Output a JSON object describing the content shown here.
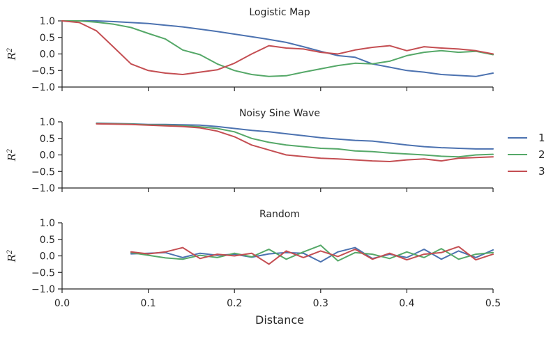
{
  "chart_data": [
    {
      "type": "line",
      "title": "Logistic Map",
      "xlabel": "",
      "ylabel": "R^2",
      "xlim": [
        0.0,
        0.5
      ],
      "ylim": [
        -1.0,
        1.0
      ],
      "yticks": [
        "1.0",
        "0.5",
        "0.0",
        "−0.5",
        "−1.0"
      ],
      "grid": false,
      "series": [
        {
          "name": "1",
          "color": "#4c72b0",
          "x": [
            0.0,
            0.02,
            0.04,
            0.06,
            0.08,
            0.1,
            0.12,
            0.14,
            0.16,
            0.18,
            0.2,
            0.22,
            0.24,
            0.26,
            0.28,
            0.3,
            0.32,
            0.34,
            0.36,
            0.38,
            0.4,
            0.42,
            0.44,
            0.46,
            0.48,
            0.5
          ],
          "y": [
            1.0,
            1.0,
            1.0,
            0.98,
            0.95,
            0.92,
            0.87,
            0.82,
            0.75,
            0.68,
            0.6,
            0.52,
            0.44,
            0.35,
            0.22,
            0.08,
            -0.05,
            -0.1,
            -0.3,
            -0.4,
            -0.5,
            -0.55,
            -0.62,
            -0.65,
            -0.68,
            -0.58
          ]
        },
        {
          "name": "2",
          "color": "#55a868",
          "x": [
            0.0,
            0.02,
            0.04,
            0.06,
            0.08,
            0.1,
            0.12,
            0.14,
            0.16,
            0.18,
            0.2,
            0.22,
            0.24,
            0.26,
            0.28,
            0.3,
            0.32,
            0.34,
            0.36,
            0.38,
            0.4,
            0.42,
            0.44,
            0.46,
            0.48,
            0.5
          ],
          "y": [
            1.0,
            1.0,
            0.96,
            0.9,
            0.8,
            0.62,
            0.45,
            0.12,
            -0.02,
            -0.3,
            -0.5,
            -0.62,
            -0.68,
            -0.66,
            -0.55,
            -0.45,
            -0.35,
            -0.28,
            -0.3,
            -0.22,
            -0.05,
            0.05,
            0.1,
            0.05,
            0.08,
            -0.02
          ]
        },
        {
          "name": "3",
          "color": "#c44e52",
          "x": [
            0.0,
            0.02,
            0.04,
            0.06,
            0.08,
            0.1,
            0.12,
            0.14,
            0.16,
            0.18,
            0.2,
            0.22,
            0.24,
            0.26,
            0.28,
            0.3,
            0.32,
            0.34,
            0.36,
            0.38,
            0.4,
            0.42,
            0.44,
            0.46,
            0.48,
            0.5
          ],
          "y": [
            1.0,
            0.95,
            0.7,
            0.2,
            -0.3,
            -0.5,
            -0.58,
            -0.62,
            -0.55,
            -0.48,
            -0.28,
            0.0,
            0.25,
            0.18,
            0.15,
            0.05,
            0.0,
            0.12,
            0.2,
            0.25,
            0.1,
            0.22,
            0.18,
            0.15,
            0.1,
            0.0
          ]
        }
      ]
    },
    {
      "type": "line",
      "title": "Noisy Sine Wave",
      "xlabel": "",
      "ylabel": "R^2",
      "xlim": [
        0.0,
        0.5
      ],
      "ylim": [
        -1.0,
        1.0
      ],
      "yticks": [
        "1.0",
        "0.5",
        "0.0",
        "−0.5",
        "−1.0"
      ],
      "grid": false,
      "series": [
        {
          "name": "1",
          "color": "#4c72b0",
          "x": [
            0.04,
            0.06,
            0.08,
            0.1,
            0.12,
            0.14,
            0.16,
            0.18,
            0.2,
            0.22,
            0.24,
            0.26,
            0.28,
            0.3,
            0.32,
            0.34,
            0.36,
            0.38,
            0.4,
            0.42,
            0.44,
            0.46,
            0.48,
            0.5
          ],
          "y": [
            0.96,
            0.95,
            0.94,
            0.92,
            0.92,
            0.91,
            0.9,
            0.86,
            0.8,
            0.74,
            0.7,
            0.64,
            0.58,
            0.52,
            0.48,
            0.44,
            0.42,
            0.36,
            0.3,
            0.25,
            0.22,
            0.2,
            0.18,
            0.18
          ]
        },
        {
          "name": "2",
          "color": "#55a868",
          "x": [
            0.04,
            0.06,
            0.08,
            0.1,
            0.12,
            0.14,
            0.16,
            0.18,
            0.2,
            0.22,
            0.24,
            0.26,
            0.28,
            0.3,
            0.32,
            0.34,
            0.36,
            0.38,
            0.4,
            0.42,
            0.44,
            0.46,
            0.48,
            0.5
          ],
          "y": [
            0.95,
            0.94,
            0.93,
            0.91,
            0.9,
            0.88,
            0.85,
            0.8,
            0.7,
            0.5,
            0.38,
            0.3,
            0.25,
            0.2,
            0.18,
            0.12,
            0.1,
            0.06,
            0.03,
            0.0,
            -0.04,
            -0.06,
            0.0,
            0.02
          ]
        },
        {
          "name": "3",
          "color": "#c44e52",
          "x": [
            0.04,
            0.06,
            0.08,
            0.1,
            0.12,
            0.14,
            0.16,
            0.18,
            0.2,
            0.22,
            0.24,
            0.26,
            0.28,
            0.3,
            0.32,
            0.34,
            0.36,
            0.38,
            0.4,
            0.42,
            0.44,
            0.46,
            0.48,
            0.5
          ],
          "y": [
            0.94,
            0.93,
            0.92,
            0.9,
            0.88,
            0.86,
            0.82,
            0.72,
            0.55,
            0.3,
            0.15,
            0.0,
            -0.05,
            -0.1,
            -0.12,
            -0.15,
            -0.18,
            -0.2,
            -0.15,
            -0.12,
            -0.18,
            -0.1,
            -0.08,
            -0.06
          ]
        }
      ]
    },
    {
      "type": "line",
      "title": "Random",
      "xlabel": "Distance",
      "ylabel": "R^2",
      "xlim": [
        0.0,
        0.5
      ],
      "ylim": [
        -1.0,
        1.0
      ],
      "xticks": [
        "0.0",
        "0.1",
        "0.2",
        "0.3",
        "0.4",
        "0.5"
      ],
      "yticks": [
        "1.0",
        "0.5",
        "0.0",
        "−0.5",
        "−1.0"
      ],
      "grid": false,
      "series": [
        {
          "name": "1",
          "color": "#4c72b0",
          "x": [
            0.08,
            0.1,
            0.12,
            0.14,
            0.16,
            0.18,
            0.2,
            0.22,
            0.24,
            0.26,
            0.28,
            0.3,
            0.32,
            0.34,
            0.36,
            0.38,
            0.4,
            0.42,
            0.44,
            0.46,
            0.48,
            0.5
          ],
          "y": [
            0.06,
            0.08,
            0.1,
            -0.05,
            0.08,
            0.02,
            0.05,
            -0.04,
            0.06,
            0.1,
            0.08,
            -0.18,
            0.12,
            0.25,
            -0.08,
            0.05,
            -0.05,
            0.2,
            -0.1,
            0.15,
            -0.05,
            0.18
          ]
        },
        {
          "name": "2",
          "color": "#55a868",
          "x": [
            0.08,
            0.1,
            0.12,
            0.14,
            0.16,
            0.18,
            0.2,
            0.22,
            0.24,
            0.26,
            0.28,
            0.3,
            0.32,
            0.34,
            0.36,
            0.38,
            0.4,
            0.42,
            0.44,
            0.46,
            0.48,
            0.5
          ],
          "y": [
            0.1,
            0.02,
            -0.06,
            -0.1,
            0.02,
            -0.05,
            0.08,
            -0.03,
            0.2,
            -0.1,
            0.12,
            0.32,
            -0.15,
            0.1,
            0.05,
            -0.08,
            0.12,
            -0.05,
            0.22,
            -0.1,
            0.05,
            0.1
          ]
        },
        {
          "name": "3",
          "color": "#c44e52",
          "x": [
            0.08,
            0.1,
            0.12,
            0.14,
            0.16,
            0.18,
            0.2,
            0.22,
            0.24,
            0.26,
            0.28,
            0.3,
            0.32,
            0.34,
            0.36,
            0.38,
            0.4,
            0.42,
            0.44,
            0.46,
            0.48,
            0.5
          ],
          "y": [
            0.12,
            0.06,
            0.12,
            0.25,
            -0.08,
            0.05,
            0.0,
            0.08,
            -0.25,
            0.15,
            -0.05,
            0.15,
            -0.02,
            0.2,
            -0.1,
            0.08,
            -0.12,
            0.05,
            0.1,
            0.28,
            -0.12,
            0.05
          ]
        }
      ]
    }
  ],
  "legend": {
    "placement": "right",
    "entries": [
      {
        "label": "1",
        "color": "#4c72b0"
      },
      {
        "label": "2",
        "color": "#55a868"
      },
      {
        "label": "3",
        "color": "#c44e52"
      }
    ]
  }
}
